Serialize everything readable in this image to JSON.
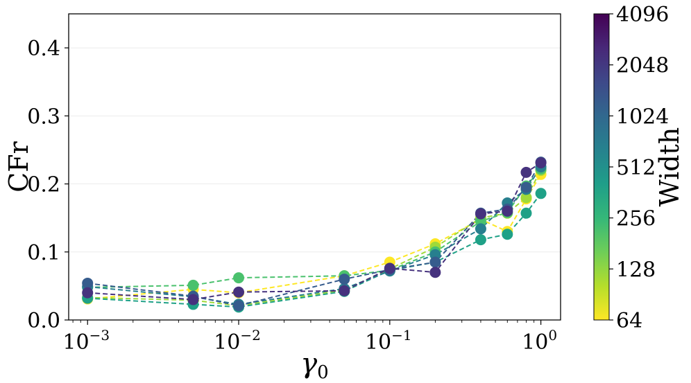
{
  "chart_data": {
    "type": "line",
    "xscale": "log",
    "xlabel": "γ",
    "xlabel_sub": "0",
    "ylabel": "CFr",
    "ylim": [
      0.0,
      0.45
    ],
    "xlim": [
      0.00075,
      1.35
    ],
    "x": [
      0.001,
      0.005,
      0.01,
      0.05,
      0.1,
      0.2,
      0.4,
      0.6,
      0.8,
      1.0
    ],
    "x_ticks": [
      {
        "value": 0.001,
        "base": "10",
        "exp": "−3"
      },
      {
        "value": 0.01,
        "base": "10",
        "exp": "−2"
      },
      {
        "value": 0.1,
        "base": "10",
        "exp": "−1"
      },
      {
        "value": 1,
        "base": "10",
        "exp": "0"
      }
    ],
    "y_ticks": [
      "0.0",
      "0.1",
      "0.2",
      "0.3",
      "0.4"
    ],
    "y_tick_values": [
      0.0,
      0.1,
      0.2,
      0.3,
      0.4
    ],
    "grid": "horizontal",
    "series": [
      {
        "name": "64",
        "color": "#fde725",
        "values": [
          0.031,
          0.045,
          0.04,
          0.065,
          0.085,
          0.112,
          0.148,
          0.13,
          0.178,
          0.214
        ]
      },
      {
        "name": "128",
        "color": "#a0da39",
        "values": [
          0.033,
          0.029,
          0.021,
          0.044,
          0.075,
          0.107,
          0.15,
          0.157,
          0.18,
          0.22
        ]
      },
      {
        "name": "256",
        "color": "#4ac16d",
        "values": [
          0.048,
          0.051,
          0.062,
          0.065,
          0.073,
          0.1,
          0.145,
          0.158,
          0.197,
          0.222
        ]
      },
      {
        "name": "512",
        "color": "#1fa187",
        "values": [
          0.032,
          0.023,
          0.019,
          0.042,
          0.073,
          0.085,
          0.118,
          0.126,
          0.157,
          0.186
        ]
      },
      {
        "name": "1024",
        "color": "#277f8e",
        "values": [
          0.049,
          0.034,
          0.023,
          0.046,
          0.072,
          0.096,
          0.134,
          0.172,
          0.192,
          0.225
        ]
      },
      {
        "name": "2048",
        "color": "#365c8d",
        "values": [
          0.054,
          0.035,
          0.021,
          0.06,
          0.074,
          0.085,
          0.157,
          0.163,
          0.195,
          0.232
        ]
      },
      {
        "name": "4096",
        "color": "#46327e",
        "values": [
          0.04,
          0.03,
          0.041,
          0.043,
          0.076,
          0.07,
          0.156,
          0.16,
          0.217,
          0.231
        ]
      }
    ],
    "colorbar": {
      "label": "Width",
      "ticks": [
        "4096",
        "2048",
        "1024",
        "512",
        "256",
        "128",
        "64"
      ],
      "colormap": "viridis",
      "stops": [
        "#440154",
        "#482878",
        "#3e4989",
        "#31688e",
        "#26828e",
        "#1f9e89",
        "#35b779",
        "#6ece58",
        "#b5de2b",
        "#fde725"
      ]
    }
  }
}
